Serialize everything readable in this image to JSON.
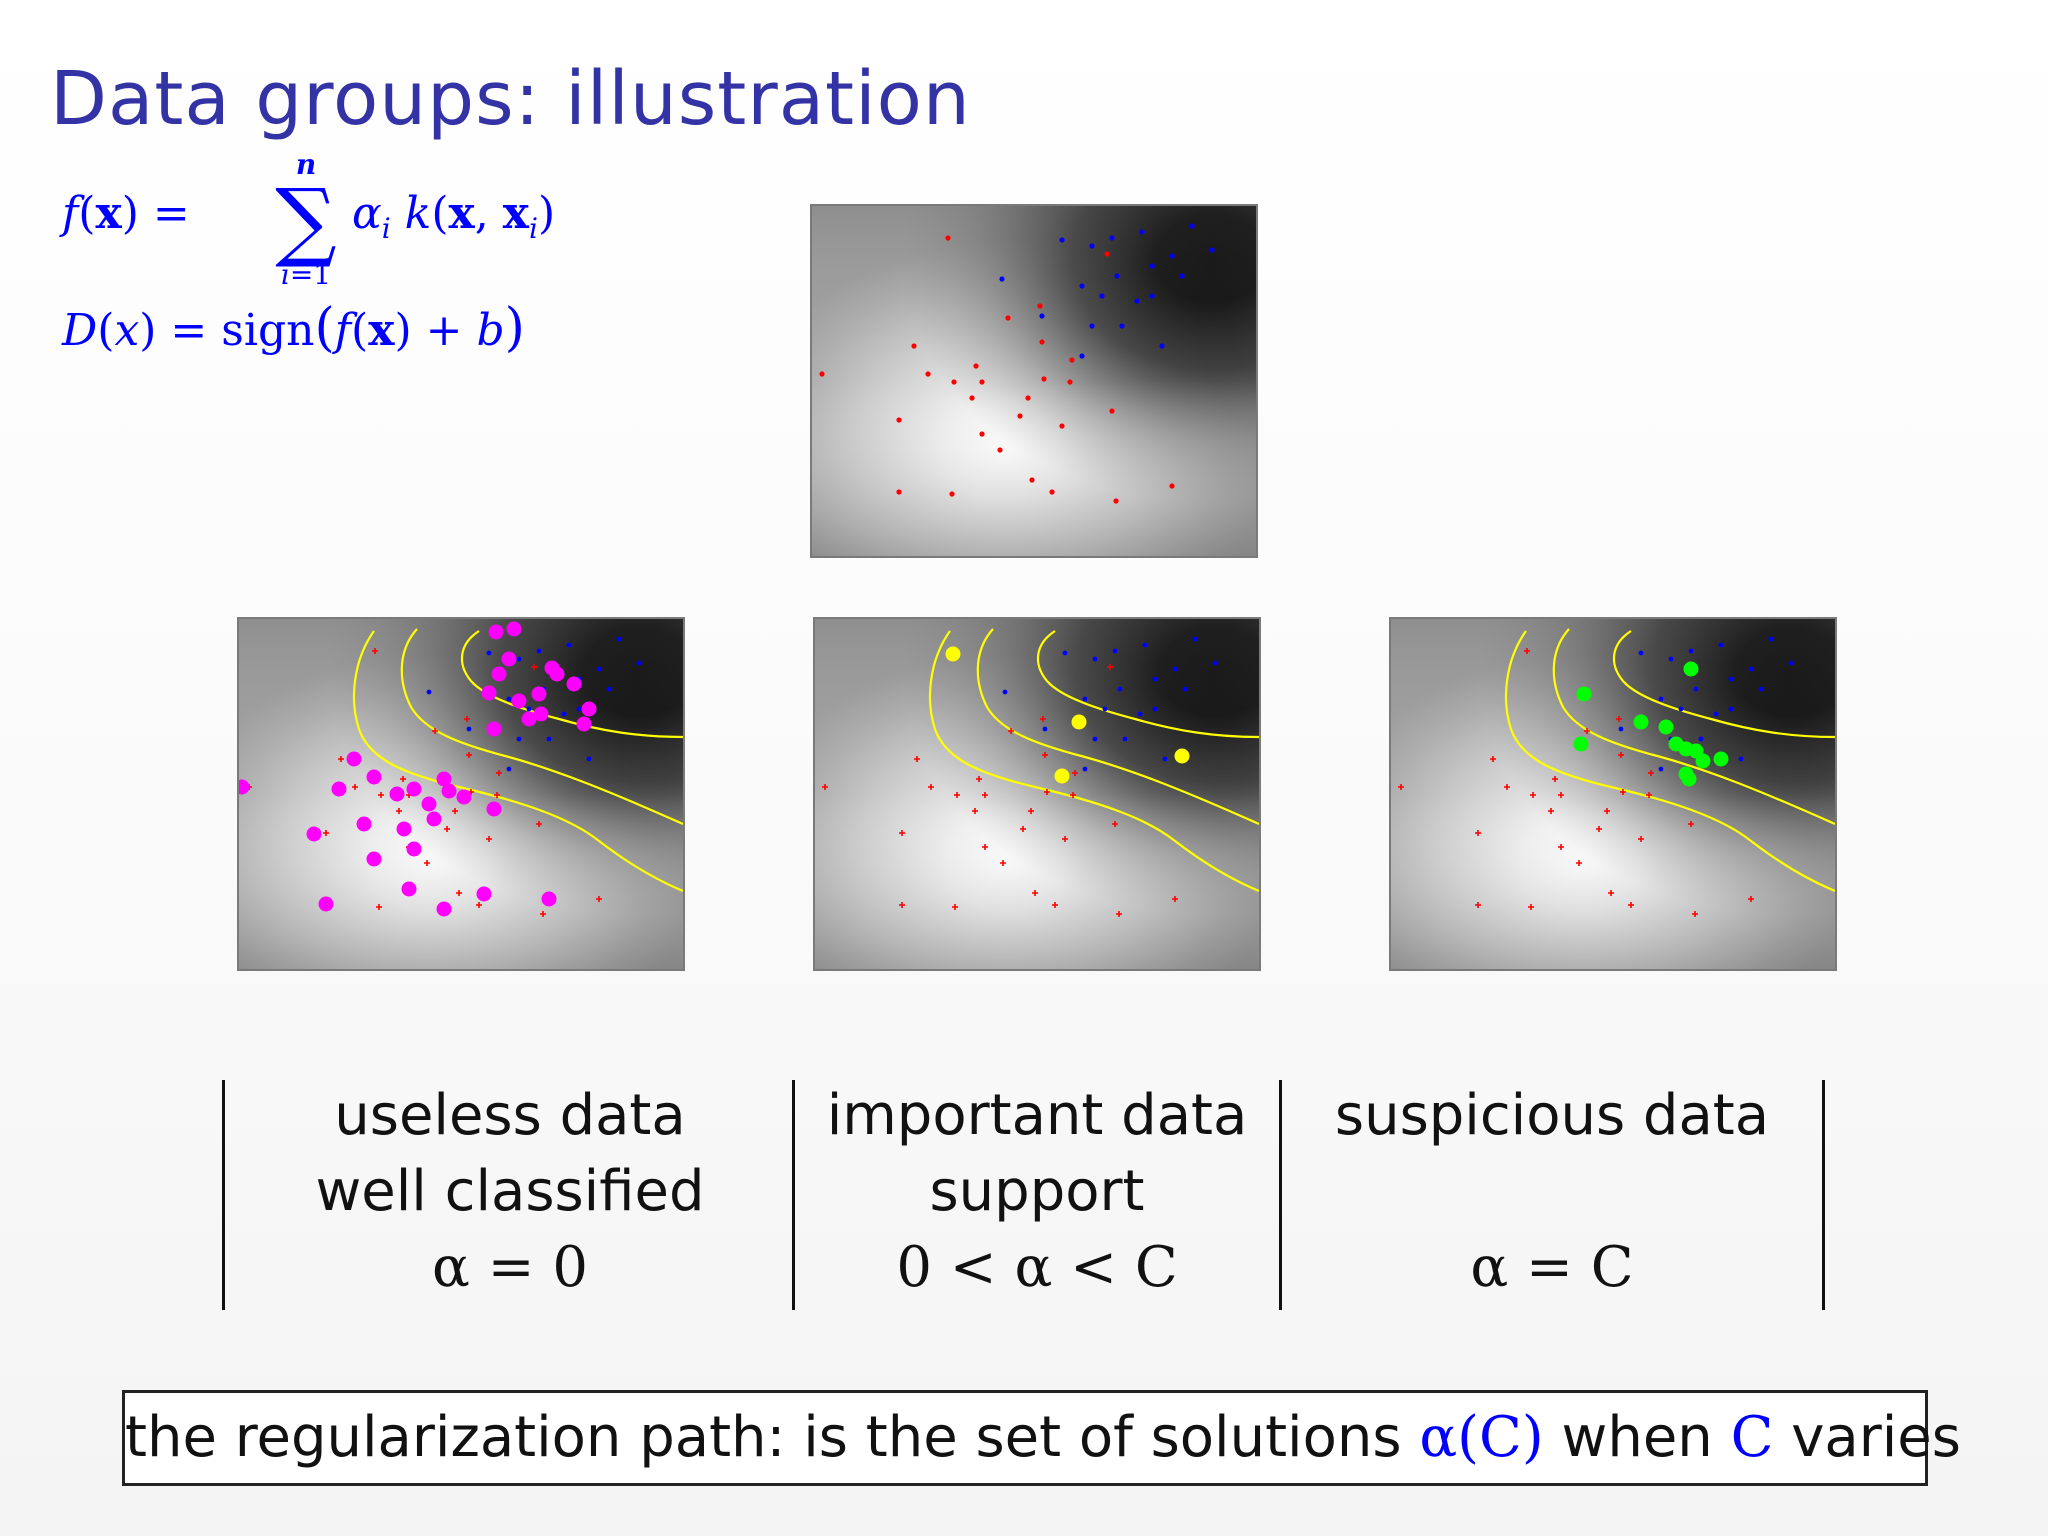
{
  "slide": {
    "title": "Data groups: illustration"
  },
  "formula": {
    "f_lhs": "f(x) =",
    "sum_upper": "n",
    "sum_lower": "i=1",
    "f_rhs": "αi k(x, xi)",
    "d_line": "D(x) = sign(f(x) + b)"
  },
  "colors": {
    "title": "#3333a6",
    "formula": "#0000ff",
    "class_positive": "#ff0000",
    "class_negative": "#0000ff",
    "useless": "#ff00ff",
    "important": "#ffff00",
    "suspicious": "#00ff00",
    "contour": "#ffff00"
  },
  "columns": [
    {
      "line1": "useless data",
      "line2": "well classified",
      "math": "α = 0"
    },
    {
      "line1": "important data",
      "line2": "support",
      "math": "0 < α < C"
    },
    {
      "line1": "suspicious data",
      "line2": "",
      "math": "α = C"
    }
  ],
  "bottom": {
    "prefix": "the regularization path: is the set of solutions",
    "alpha_c": "α(C)",
    "when": "when",
    "c": "C",
    "suffix": "varies"
  }
}
